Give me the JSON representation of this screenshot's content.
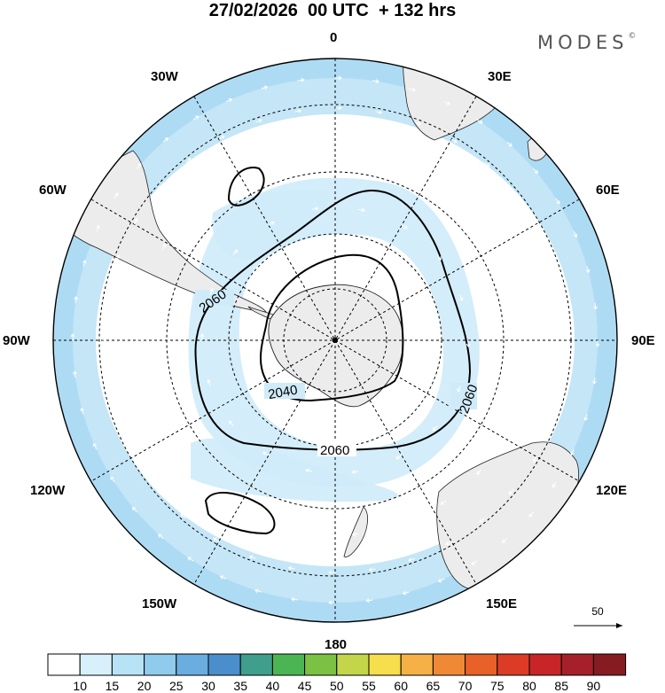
{
  "title": "27/02/2026  00 UTC  + 132 hrs",
  "brand": {
    "name": "MODES",
    "mark": "©"
  },
  "longitude_labels": {
    "north": "0",
    "east_30": "30E",
    "east_60": "60E",
    "east_90": "90E",
    "east_120": "120E",
    "east_150": "150E",
    "south": "180",
    "west_150": "150W",
    "west_120": "120W",
    "west_90": "90W",
    "west_60": "60W",
    "west_30": "30W"
  },
  "contour_labels": {
    "inner": "2040",
    "outer_a": "2060",
    "outer_b": "2060",
    "outer_c": "2060"
  },
  "reference_vector": {
    "value": "50",
    "icon": "arrow-right-icon"
  },
  "colorbar": {
    "labels": [
      "10",
      "15",
      "20",
      "25",
      "30",
      "35",
      "40",
      "45",
      "50",
      "55",
      "60",
      "65",
      "70",
      "75",
      "80",
      "85",
      "90"
    ],
    "colors": [
      "#ffffff",
      "#d8f0fb",
      "#b8e2f6",
      "#8fcbed",
      "#6aaee0",
      "#4a8fcc",
      "#3f9e8c",
      "#4cb553",
      "#7bc143",
      "#c3d64a",
      "#f6de4c",
      "#f5b146",
      "#ef8936",
      "#e86128",
      "#dc3b26",
      "#c72528",
      "#a5202a",
      "#861b22"
    ]
  },
  "colors": {
    "land": "#ececec",
    "wind_light": "#d8f0fb",
    "wind_mid": "#b8e2f6",
    "contour": "#000000"
  }
}
